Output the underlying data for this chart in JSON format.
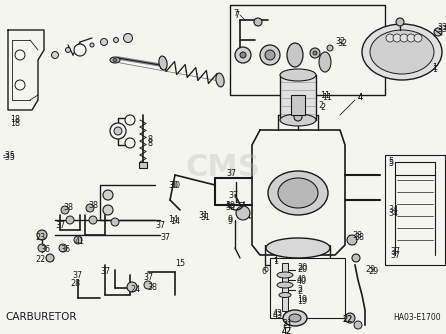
{
  "title": "CARBURETOR",
  "diagram_code": "HA03-E1700",
  "bg_color": "#f5f5f0",
  "line_color": "#1a1a1a",
  "text_color": "#1a1a1a",
  "fig_width": 4.46,
  "fig_height": 3.34,
  "dpi": 100,
  "watermark": "CMS",
  "watermark_color": "#bbbbbb",
  "watermark_alpha": 0.35,
  "label_fontsize": 5.8,
  "title_fontsize": 7.5,
  "code_fontsize": 5.5
}
